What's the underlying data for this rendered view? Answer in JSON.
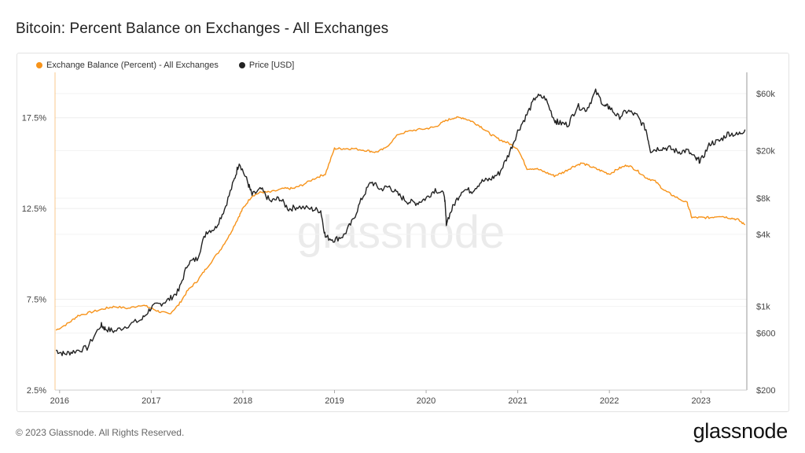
{
  "title": "Bitcoin: Percent Balance on Exchanges - All Exchanges",
  "watermark": "glassnode",
  "footer": "© 2023 Glassnode. All Rights Reserved.",
  "brand": "glassnode",
  "colors": {
    "balance": "#f7931a",
    "price": "#222222",
    "grid": "#eeeeee"
  },
  "legend": [
    {
      "label": "Exchange Balance (Percent) - All Exchanges",
      "color": "#f7931a"
    },
    {
      "label": "Price [USD]",
      "color": "#222222"
    }
  ],
  "chart_data": {
    "type": "line",
    "title": "Bitcoin: Percent Balance on Exchanges - All Exchanges",
    "x_ticks": [
      "2016",
      "2017",
      "2018",
      "2019",
      "2020",
      "2021",
      "2022",
      "2023"
    ],
    "xlim": [
      2015.95,
      2023.5
    ],
    "left_axis": {
      "ticks": [
        "2.5%",
        "7.5%",
        "12.5%",
        "17.5%"
      ],
      "tick_values": [
        2.5,
        7.5,
        12.5,
        17.5
      ],
      "ylim": [
        2.5,
        20
      ]
    },
    "right_axis": {
      "scale": "log",
      "ticks": [
        "$200",
        "$600",
        "$1k",
        "$4k",
        "$8k",
        "$20k",
        "$60k"
      ],
      "tick_values": [
        200,
        600,
        1000,
        4000,
        8000,
        20000,
        60000
      ],
      "ylim": [
        200,
        90000
      ]
    },
    "grid": true,
    "legend_position": "top-left",
    "series": [
      {
        "name": "Exchange Balance (Percent) - All Exchanges",
        "axis": "left",
        "x": [
          2015.96,
          2016.1,
          2016.2,
          2016.35,
          2016.5,
          2016.6,
          2016.75,
          2016.9,
          2017.0,
          2017.1,
          2017.2,
          2017.3,
          2017.4,
          2017.5,
          2017.6,
          2017.75,
          2017.85,
          2017.95,
          2018.0,
          2018.1,
          2018.2,
          2018.3,
          2018.45,
          2018.55,
          2018.65,
          2018.8,
          2018.9,
          2019.0,
          2019.1,
          2019.2,
          2019.35,
          2019.45,
          2019.55,
          2019.7,
          2019.85,
          2020.0,
          2020.1,
          2020.2,
          2020.3,
          2020.4,
          2020.5,
          2020.6,
          2020.7,
          2020.8,
          2020.9,
          2021.0,
          2021.1,
          2021.2,
          2021.3,
          2021.4,
          2021.5,
          2021.6,
          2021.7,
          2021.8,
          2021.9,
          2022.0,
          2022.1,
          2022.2,
          2022.3,
          2022.4,
          2022.5,
          2022.6,
          2022.7,
          2022.85,
          2022.9,
          2023.0,
          2023.1,
          2023.2,
          2023.3,
          2023.4,
          2023.48
        ],
        "values": [
          5.8,
          6.2,
          6.6,
          6.8,
          7.0,
          7.1,
          7.0,
          7.2,
          7.0,
          6.8,
          6.7,
          7.2,
          8.0,
          8.5,
          9.2,
          10.2,
          11.0,
          12.0,
          12.5,
          13.2,
          13.4,
          13.4,
          13.6,
          13.6,
          13.8,
          14.2,
          14.4,
          15.8,
          15.8,
          15.8,
          15.7,
          15.6,
          15.8,
          16.6,
          16.8,
          16.9,
          17.0,
          17.3,
          17.5,
          17.5,
          17.3,
          17.0,
          16.6,
          16.3,
          16.1,
          15.8,
          14.7,
          14.7,
          14.5,
          14.3,
          14.5,
          14.8,
          15.0,
          14.8,
          14.6,
          14.4,
          14.7,
          14.9,
          14.6,
          14.2,
          14.0,
          13.5,
          13.2,
          12.8,
          12.0,
          12.0,
          12.0,
          12.1,
          12.0,
          11.9,
          11.6
        ]
      },
      {
        "name": "Price [USD]",
        "axis": "right",
        "x": [
          2015.96,
          2016.05,
          2016.15,
          2016.3,
          2016.45,
          2016.5,
          2016.6,
          2016.75,
          2016.9,
          2017.0,
          2017.1,
          2017.2,
          2017.3,
          2017.4,
          2017.5,
          2017.6,
          2017.7,
          2017.8,
          2017.9,
          2017.96,
          2018.05,
          2018.1,
          2018.2,
          2018.3,
          2018.4,
          2018.5,
          2018.6,
          2018.75,
          2018.85,
          2018.9,
          2019.0,
          2019.1,
          2019.2,
          2019.3,
          2019.4,
          2019.5,
          2019.6,
          2019.7,
          2019.8,
          2019.9,
          2020.0,
          2020.1,
          2020.2,
          2020.22,
          2020.3,
          2020.4,
          2020.5,
          2020.6,
          2020.7,
          2020.8,
          2020.9,
          2021.0,
          2021.1,
          2021.2,
          2021.3,
          2021.4,
          2021.45,
          2021.55,
          2021.65,
          2021.75,
          2021.85,
          2021.95,
          2022.0,
          2022.1,
          2022.2,
          2022.3,
          2022.4,
          2022.45,
          2022.55,
          2022.65,
          2022.75,
          2022.85,
          2022.95,
          2023.0,
          2023.1,
          2023.2,
          2023.3,
          2023.4,
          2023.48
        ],
        "values": [
          430,
          400,
          420,
          450,
          700,
          650,
          620,
          700,
          780,
          980,
          1050,
          1150,
          1350,
          2300,
          2500,
          4200,
          4500,
          6500,
          11000,
          16000,
          11000,
          8500,
          9500,
          7500,
          8000,
          6500,
          6800,
          6500,
          6300,
          3800,
          3600,
          3900,
          5200,
          8000,
          11000,
          9500,
          10000,
          8500,
          7500,
          7300,
          8000,
          9500,
          8500,
          5000,
          7000,
          9500,
          9200,
          11000,
          11500,
          13000,
          18500,
          29000,
          40000,
          57000,
          55000,
          36000,
          34000,
          33000,
          47000,
          44000,
          62000,
          47000,
          46000,
          38000,
          43000,
          39000,
          30000,
          20000,
          21000,
          21000,
          19500,
          20000,
          16800,
          16500,
          23000,
          24000,
          28000,
          27000,
          30000
        ]
      }
    ]
  }
}
